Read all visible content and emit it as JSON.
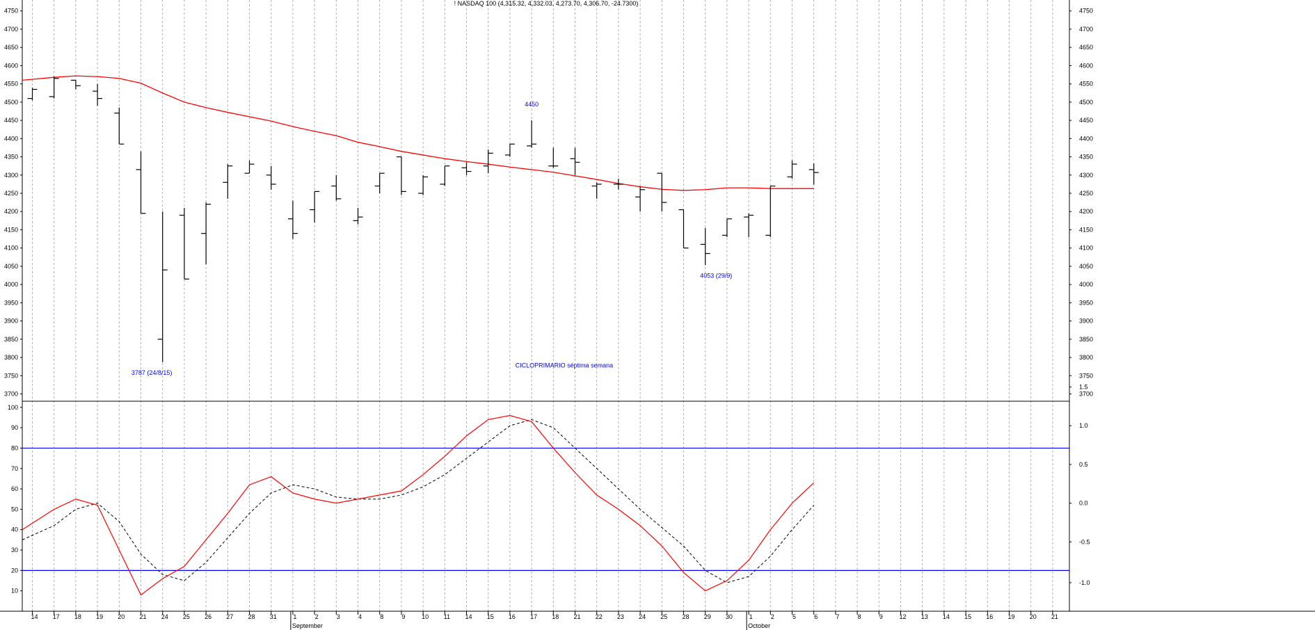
{
  "chart_data": {
    "type": "ohlc",
    "title": "! NASDAQ 100 (4,315.32, 4,332.03, 4,273.70, 4,306.70, -24.7300)",
    "price_axis": {
      "ylim": [
        3680,
        4780
      ],
      "ticks": [
        3700,
        3750,
        3800,
        3850,
        3900,
        3950,
        4000,
        4050,
        4100,
        4150,
        4200,
        4250,
        4300,
        4350,
        4400,
        4450,
        4500,
        4550,
        4600,
        4650,
        4700,
        4750
      ]
    },
    "x_labels": [
      "14",
      "17",
      "18",
      "19",
      "20",
      "21",
      "24",
      "25",
      "26",
      "27",
      "28",
      "31",
      "1",
      "2",
      "3",
      "4",
      "8",
      "9",
      "10",
      "11",
      "14",
      "15",
      "16",
      "17",
      "18",
      "21",
      "22",
      "23",
      "24",
      "25",
      "28",
      "29",
      "30",
      "1",
      "2",
      "5",
      "6",
      "7",
      "8",
      "9",
      "12",
      "13",
      "14",
      "15",
      "16",
      "19",
      "20",
      "21"
    ],
    "month_labels": [
      {
        "label": "September",
        "index": 12
      },
      {
        "label": "October",
        "index": 33
      }
    ],
    "ohlc": [
      {
        "o": 4510,
        "h": 4540,
        "l": 4505,
        "c": 4535
      },
      {
        "o": 4515,
        "h": 4570,
        "l": 4510,
        "c": 4565
      },
      {
        "o": 4560,
        "h": 4560,
        "l": 4535,
        "c": 4545
      },
      {
        "o": 4530,
        "h": 4550,
        "l": 4490,
        "c": 4510
      },
      {
        "o": 4470,
        "h": 4485,
        "l": 4385,
        "c": 4385
      },
      {
        "o": 4315,
        "h": 4365,
        "l": 4195,
        "c": 4195
      },
      {
        "o": 3850,
        "h": 4200,
        "l": 3787,
        "c": 4040
      },
      {
        "o": 4190,
        "h": 4210,
        "l": 4015,
        "c": 4015
      },
      {
        "o": 4140,
        "h": 4225,
        "l": 4055,
        "c": 4220
      },
      {
        "o": 4280,
        "h": 4330,
        "l": 4235,
        "c": 4325
      },
      {
        "o": 4305,
        "h": 4340,
        "l": 4305,
        "c": 4330
      },
      {
        "o": 4300,
        "h": 4325,
        "l": 4260,
        "c": 4275
      },
      {
        "o": 4180,
        "h": 4230,
        "l": 4125,
        "c": 4140
      },
      {
        "o": 4205,
        "h": 4255,
        "l": 4170,
        "c": 4255
      },
      {
        "o": 4270,
        "h": 4300,
        "l": 4230,
        "c": 4235
      },
      {
        "o": 4175,
        "h": 4210,
        "l": 4165,
        "c": 4185
      },
      {
        "o": 4270,
        "h": 4305,
        "l": 4250,
        "c": 4305
      },
      {
        "o": 4350,
        "h": 4350,
        "l": 4245,
        "c": 4255
      },
      {
        "o": 4250,
        "h": 4300,
        "l": 4245,
        "c": 4295
      },
      {
        "o": 4275,
        "h": 4325,
        "l": 4270,
        "c": 4325
      },
      {
        "o": 4320,
        "h": 4335,
        "l": 4300,
        "c": 4310
      },
      {
        "o": 4325,
        "h": 4370,
        "l": 4305,
        "c": 4360
      },
      {
        "o": 4355,
        "h": 4385,
        "l": 4350,
        "c": 4385
      },
      {
        "o": 4380,
        "h": 4450,
        "l": 4375,
        "c": 4385
      },
      {
        "o": 4325,
        "h": 4375,
        "l": 4320,
        "c": 4325
      },
      {
        "o": 4345,
        "h": 4375,
        "l": 4300,
        "c": 4335
      },
      {
        "o": 4270,
        "h": 4280,
        "l": 4235,
        "c": 4275
      },
      {
        "o": 4275,
        "h": 4290,
        "l": 4260,
        "c": 4275
      },
      {
        "o": 4240,
        "h": 4270,
        "l": 4200,
        "c": 4260
      },
      {
        "o": 4305,
        "h": 4305,
        "l": 4200,
        "c": 4225
      },
      {
        "o": 4205,
        "h": 4205,
        "l": 4100,
        "c": 4100
      },
      {
        "o": 4110,
        "h": 4155,
        "l": 4053,
        "c": 4085
      },
      {
        "o": 4135,
        "h": 4180,
        "l": 4130,
        "c": 4180
      },
      {
        "o": 4185,
        "h": 4195,
        "l": 4130,
        "c": 4190
      },
      {
        "o": 4135,
        "h": 4270,
        "l": 4130,
        "c": 4270
      },
      {
        "o": 4295,
        "h": 4340,
        "l": 4290,
        "c": 4330
      },
      {
        "o": 4315,
        "h": 4332,
        "l": 4274,
        "c": 4307
      }
    ],
    "moving_average": {
      "color": "#ff0000",
      "values": [
        4560,
        4568,
        4572,
        4570,
        4565,
        4552,
        4525,
        4500,
        4485,
        4472,
        4460,
        4448,
        4433,
        4420,
        4408,
        4390,
        4378,
        4365,
        4355,
        4345,
        4337,
        4330,
        4322,
        4315,
        4308,
        4298,
        4288,
        4277,
        4268,
        4261,
        4258,
        4260,
        4265,
        4265,
        4263,
        4263,
        4263
      ]
    },
    "annotations": [
      {
        "text": "4450",
        "index": 23,
        "value": 4450
      },
      {
        "text": "3787 (24/8/15)",
        "index": 5.5,
        "value": 3787
      },
      {
        "text": "4053 (29/9)",
        "index": 31.5,
        "value": 4053
      },
      {
        "text": "CICLOPRIMARIO séptima semana",
        "index": 24.5,
        "value": 3792
      }
    ],
    "oscillator": {
      "left_axis": {
        "ylim": [
          0,
          103
        ],
        "ticks": [
          10,
          20,
          30,
          40,
          50,
          60,
          70,
          80,
          90,
          100
        ]
      },
      "right_axis": {
        "ticks": [
          "-1.0",
          "-0.5",
          "0.0",
          "0.5",
          "1.0",
          "1.5"
        ],
        "tick_values": [
          14,
          34,
          53,
          72,
          91,
          110
        ]
      },
      "levels": [
        80,
        20
      ],
      "level_color": "#0000ff",
      "k_line": {
        "color": "#ff0000",
        "values": [
          40,
          50,
          55,
          52,
          30,
          8,
          16,
          22,
          35,
          48,
          62,
          66,
          58,
          55,
          53,
          55,
          57,
          59,
          67,
          76,
          86,
          94,
          96,
          93,
          80,
          68,
          57,
          50,
          42,
          32,
          19,
          10,
          15,
          25,
          40,
          53,
          63
        ]
      },
      "d_line": {
        "color": "#000000",
        "values": [
          35,
          42,
          50,
          53,
          44,
          28,
          18,
          15,
          24,
          36,
          48,
          58,
          62,
          60,
          56,
          55,
          55,
          57,
          61,
          67,
          75,
          83,
          91,
          94,
          90,
          80,
          70,
          60,
          50,
          41,
          32,
          20,
          14,
          17,
          27,
          40,
          52
        ]
      }
    }
  }
}
